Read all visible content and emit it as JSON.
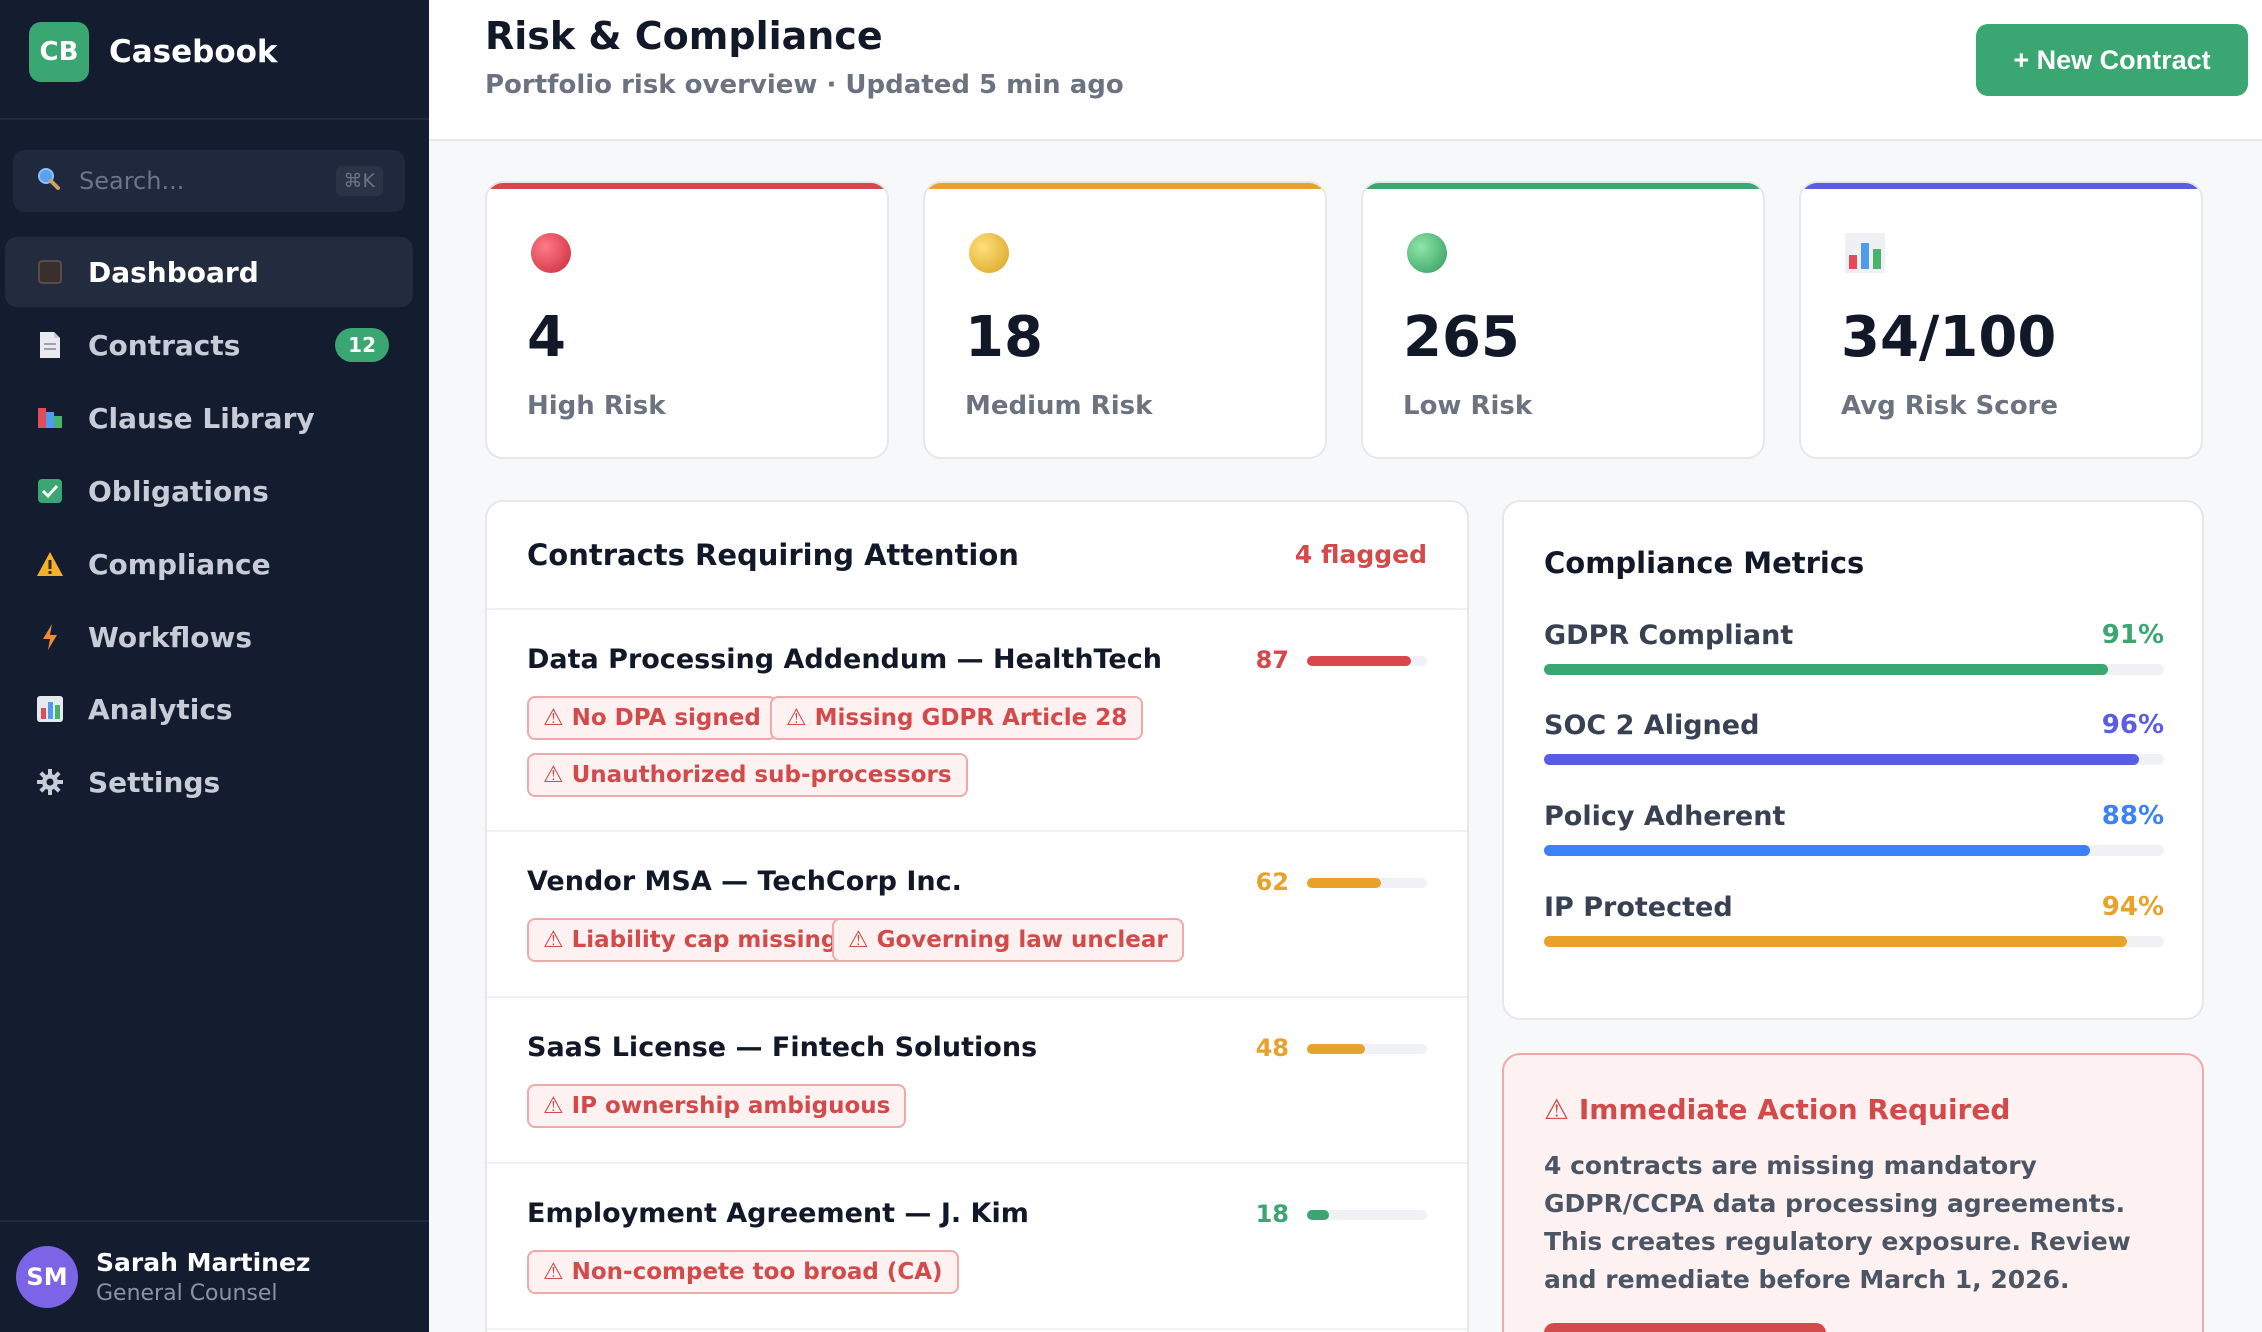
{
  "brand": {
    "logo": "CB",
    "name": "Casebook"
  },
  "search": {
    "placeholder": "Search...",
    "shortcut": "⌘K"
  },
  "sidebar": {
    "items": [
      {
        "label": "Dashboard",
        "icon": "dashboard-icon",
        "active": true
      },
      {
        "label": "Contracts",
        "icon": "document-icon",
        "badge": "12"
      },
      {
        "label": "Clause Library",
        "icon": "books-icon"
      },
      {
        "label": "Obligations",
        "icon": "checkbox-icon"
      },
      {
        "label": "Compliance",
        "icon": "warning-icon"
      },
      {
        "label": "Workflows",
        "icon": "lightning-icon"
      },
      {
        "label": "Analytics",
        "icon": "bar-chart-icon"
      },
      {
        "label": "Settings",
        "icon": "gear-icon"
      }
    ]
  },
  "user": {
    "initials": "SM",
    "name": "Sarah Martinez",
    "role": "General Counsel"
  },
  "header": {
    "title": "Risk & Compliance",
    "subtitle": "Portfolio risk overview · Updated 5 min ago",
    "new_button": "+ New Contract"
  },
  "stats": [
    {
      "value": "4",
      "label": "High Risk",
      "color": "#d9464b",
      "icon": "red-circle-icon"
    },
    {
      "value": "18",
      "label": "Medium Risk",
      "color": "#e8a22b",
      "icon": "yellow-circle-icon"
    },
    {
      "value": "265",
      "label": "Low Risk",
      "color": "#3aa672",
      "icon": "green-circle-icon"
    },
    {
      "value": "34/100",
      "label": "Avg Risk Score",
      "color": "#5b5ce6",
      "icon": "bar-chart-icon"
    }
  ],
  "contracts": {
    "title": "Contracts Requiring Attention",
    "flagged": "4 flagged",
    "items": [
      {
        "name": "Data Processing Addendum — HealthTech",
        "score": "87",
        "level": 0.87,
        "color": "#d9464b",
        "tags": [
          "⚠ No DPA signed",
          "⚠ Missing GDPR Article 28",
          "⚠ Unauthorized sub-processors"
        ]
      },
      {
        "name": "Vendor MSA — TechCorp Inc.",
        "score": "62",
        "level": 0.62,
        "color": "#e8a22b",
        "tags": [
          "⚠ Liability cap missing",
          "⚠ Governing law unclear"
        ]
      },
      {
        "name": "SaaS License — Fintech Solutions",
        "score": "48",
        "level": 0.48,
        "color": "#e8a22b",
        "tags": [
          "⚠ IP ownership ambiguous"
        ]
      },
      {
        "name": "Employment Agreement — J. Kim",
        "score": "18",
        "level": 0.18,
        "color": "#3aa672",
        "tags": [
          "⚠ Non-compete too broad (CA)"
        ]
      }
    ]
  },
  "metrics": {
    "title": "Compliance Metrics",
    "items": [
      {
        "label": "GDPR Compliant",
        "pct": "91%",
        "level": 0.91,
        "color": "#3aa672"
      },
      {
        "label": "SOC 2 Aligned",
        "pct": "96%",
        "level": 0.96,
        "color": "#5b5ce6"
      },
      {
        "label": "Policy Adherent",
        "pct": "88%",
        "level": 0.88,
        "color": "#3b82f6"
      },
      {
        "label": "IP Protected",
        "pct": "94%",
        "level": 0.94,
        "color": "#e8a22b"
      }
    ]
  },
  "alert": {
    "title": "⚠ Immediate Action Required",
    "body": "4 contracts are missing mandatory GDPR/CCPA data processing agreements. This creates regulatory exposure. Review and remediate before March 1, 2026."
  }
}
